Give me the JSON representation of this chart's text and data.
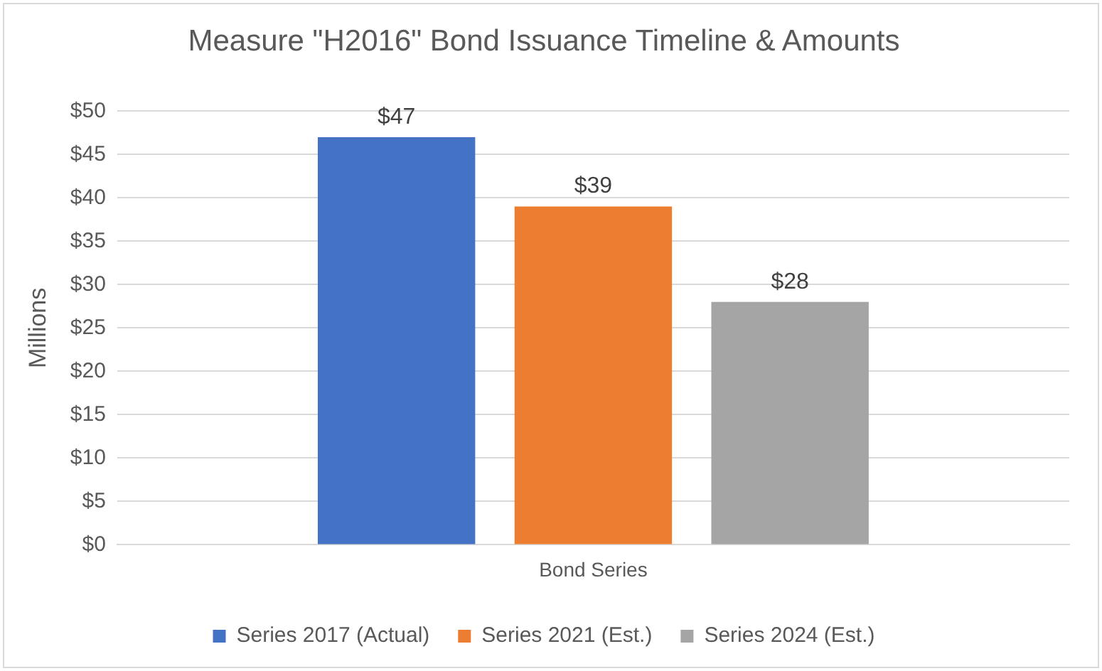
{
  "chart_data": {
    "type": "bar",
    "title": "Measure \"H2016\" Bond Issuance Timeline & Amounts",
    "ylabel": "Millions",
    "categories": [
      "Bond Series"
    ],
    "series": [
      {
        "name": "Series 2017 (Actual)",
        "color": "#4472c4",
        "values": [
          47
        ],
        "value_labels": [
          "$47"
        ]
      },
      {
        "name": "Series 2021 (Est.)",
        "color": "#ed7d31",
        "values": [
          39
        ],
        "value_labels": [
          "$39"
        ]
      },
      {
        "name": "Series 2024 (Est.)",
        "color": "#a5a5a5",
        "values": [
          28
        ],
        "value_labels": [
          "$28"
        ]
      }
    ],
    "ylim": [
      0,
      50
    ],
    "yticks": [
      {
        "value": 0,
        "label": "$0"
      },
      {
        "value": 5,
        "label": "$5"
      },
      {
        "value": 10,
        "label": "$10"
      },
      {
        "value": 15,
        "label": "$15"
      },
      {
        "value": 20,
        "label": "$20"
      },
      {
        "value": 25,
        "label": "$25"
      },
      {
        "value": 30,
        "label": "$30"
      },
      {
        "value": 35,
        "label": "$35"
      },
      {
        "value": 40,
        "label": "$40"
      },
      {
        "value": 45,
        "label": "$45"
      },
      {
        "value": 50,
        "label": "$50"
      }
    ],
    "grid": "y",
    "legend": "bottom"
  }
}
